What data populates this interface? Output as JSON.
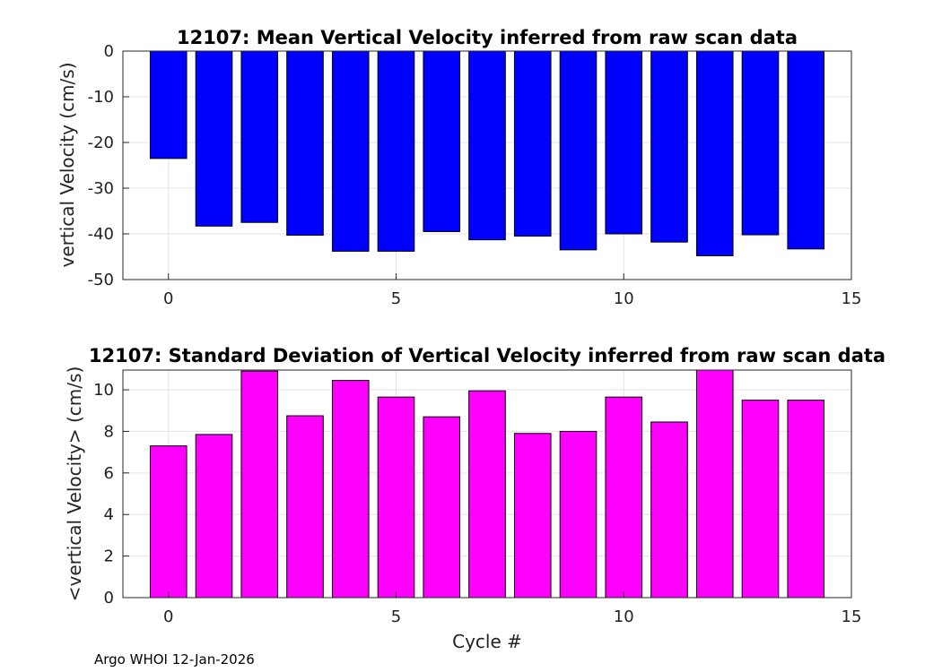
{
  "chart_data": [
    {
      "type": "bar",
      "title": "12107: Mean Vertical Velocity inferred from raw scan data",
      "xlabel": "",
      "ylabel": "vertical Velocity (cm/s)",
      "x": [
        0,
        1,
        2,
        3,
        4,
        5,
        6,
        7,
        8,
        9,
        10,
        11,
        12,
        13,
        14
      ],
      "values": [
        -23.5,
        -38.3,
        -37.5,
        -40.3,
        -43.8,
        -43.8,
        -39.5,
        -41.3,
        -40.5,
        -43.5,
        -40.0,
        -41.8,
        -44.8,
        -40.2,
        -43.3
      ],
      "xlim": [
        -1,
        15
      ],
      "ylim": [
        -50,
        0
      ],
      "xticks": [
        0,
        5,
        10,
        15
      ],
      "yticks": [
        -50,
        -40,
        -30,
        -20,
        -10,
        0
      ],
      "color": "#0000ff",
      "grid": true
    },
    {
      "type": "bar",
      "title": "12107: Standard Deviation of Vertical Velocity inferred from raw scan data",
      "xlabel": "Cycle #",
      "ylabel": "<vertical Velocity> (cm/s)",
      "x": [
        0,
        1,
        2,
        3,
        4,
        5,
        6,
        7,
        8,
        9,
        10,
        11,
        12,
        13,
        14
      ],
      "values": [
        7.3,
        7.85,
        10.9,
        8.75,
        10.45,
        9.65,
        8.7,
        9.95,
        7.9,
        8.0,
        9.65,
        8.45,
        10.95,
        9.5,
        9.5
      ],
      "xlim": [
        -1,
        15
      ],
      "ylim": [
        0,
        10.95
      ],
      "xticks": [
        0,
        5,
        10,
        15
      ],
      "yticks": [
        0,
        2,
        4,
        6,
        8,
        10
      ],
      "color": "#ff00ff",
      "grid": true
    }
  ],
  "footer": "Argo WHOI 12-Jan-2026"
}
